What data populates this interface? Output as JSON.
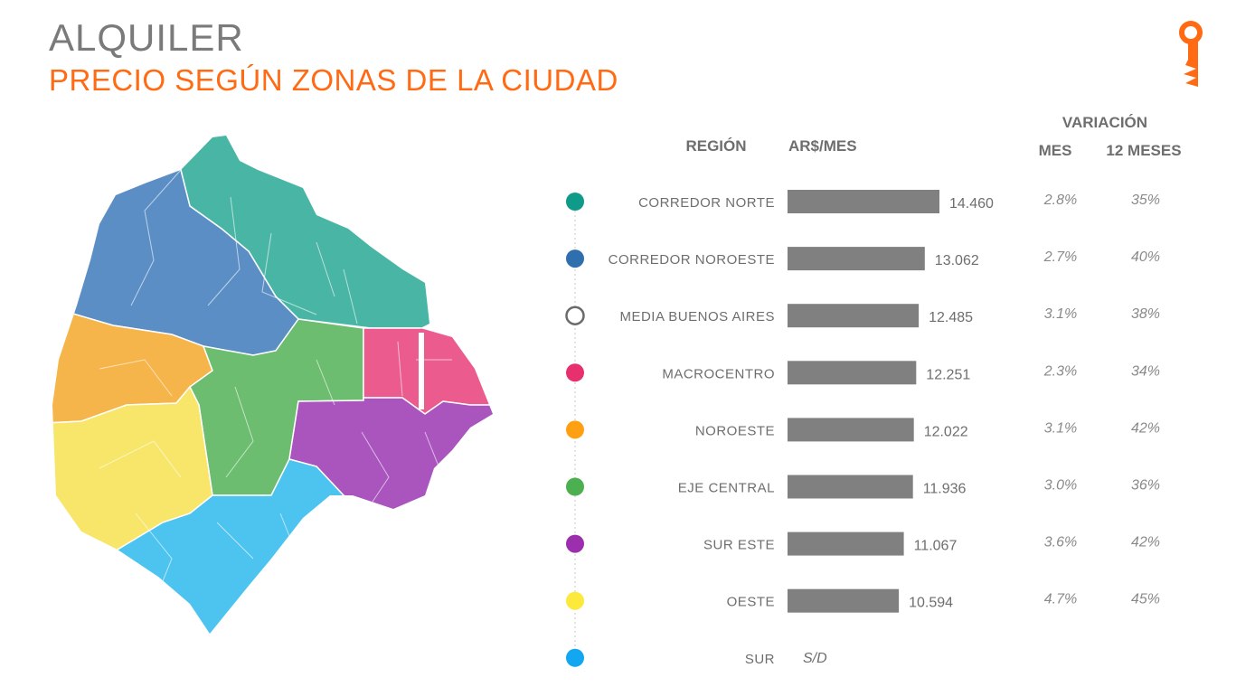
{
  "header": {
    "title": "ALQUILER",
    "subtitle": "PRECIO SEGÚN ZONAS DE LA CIUDAD",
    "title_color": "#7a7a7a",
    "accent_color": "#ff6a13",
    "logo_icon": "key-logo-icon"
  },
  "chart_data": {
    "type": "bar",
    "columns": {
      "region": "REGIÓN",
      "price": "AR$/MES",
      "variation": "VARIACIÓN",
      "month": "MES",
      "year": "12 MESES"
    },
    "rows": [
      {
        "label": "CORREDOR NORTE",
        "value": 14460,
        "value_label": "14.460",
        "mes": "2.8%",
        "meses12": "35%",
        "color": "#0f9a8a",
        "marker": "filled"
      },
      {
        "label": "CORREDOR NOROESTE",
        "value": 13062,
        "value_label": "13.062",
        "mes": "2.7%",
        "meses12": "40%",
        "color": "#2f6fae",
        "marker": "filled"
      },
      {
        "label": "MEDIA BUENOS AIRES",
        "value": 12485,
        "value_label": "12.485",
        "mes": "3.1%",
        "meses12": "38%",
        "color": "#6b6b6b",
        "marker": "hollow"
      },
      {
        "label": "MACROCENTRO",
        "value": 12251,
        "value_label": "12.251",
        "mes": "2.3%",
        "meses12": "34%",
        "color": "#e9306e",
        "marker": "filled"
      },
      {
        "label": "NOROESTE",
        "value": 12022,
        "value_label": "12.022",
        "mes": "3.1%",
        "meses12": "42%",
        "color": "#ffa012",
        "marker": "filled"
      },
      {
        "label": "EJE CENTRAL",
        "value": 11936,
        "value_label": "11.936",
        "mes": "3.0%",
        "meses12": "36%",
        "color": "#4caf50",
        "marker": "filled"
      },
      {
        "label": "SUR ESTE",
        "value": 11067,
        "value_label": "11.067",
        "mes": "3.6%",
        "meses12": "42%",
        "color": "#9b2fae",
        "marker": "filled"
      },
      {
        "label": "OESTE",
        "value": 10594,
        "value_label": "10.594",
        "mes": "4.7%",
        "meses12": "45%",
        "color": "#fde93b",
        "marker": "filled"
      },
      {
        "label": "SUR",
        "value": null,
        "value_label": "S/D",
        "mes": "",
        "meses12": "",
        "color": "#12a7f0",
        "marker": "filled"
      }
    ],
    "bar_color": "#808080",
    "xlim": [
      0,
      14460
    ],
    "grid": false,
    "legend": "none"
  },
  "map": {
    "zones": [
      {
        "zone": "corredor-norte",
        "color": "#49b5a4"
      },
      {
        "zone": "corredor-noroeste",
        "color": "#5b8ec4"
      },
      {
        "zone": "noroeste",
        "color": "#f6b54a"
      },
      {
        "zone": "eje-central",
        "color": "#6cbd6f"
      },
      {
        "zone": "macrocentro",
        "color": "#ec5b8e"
      },
      {
        "zone": "sur-este",
        "color": "#a955bd"
      },
      {
        "zone": "oeste",
        "color": "#f7e66a"
      },
      {
        "zone": "sur",
        "color": "#4cc4ef"
      }
    ]
  }
}
